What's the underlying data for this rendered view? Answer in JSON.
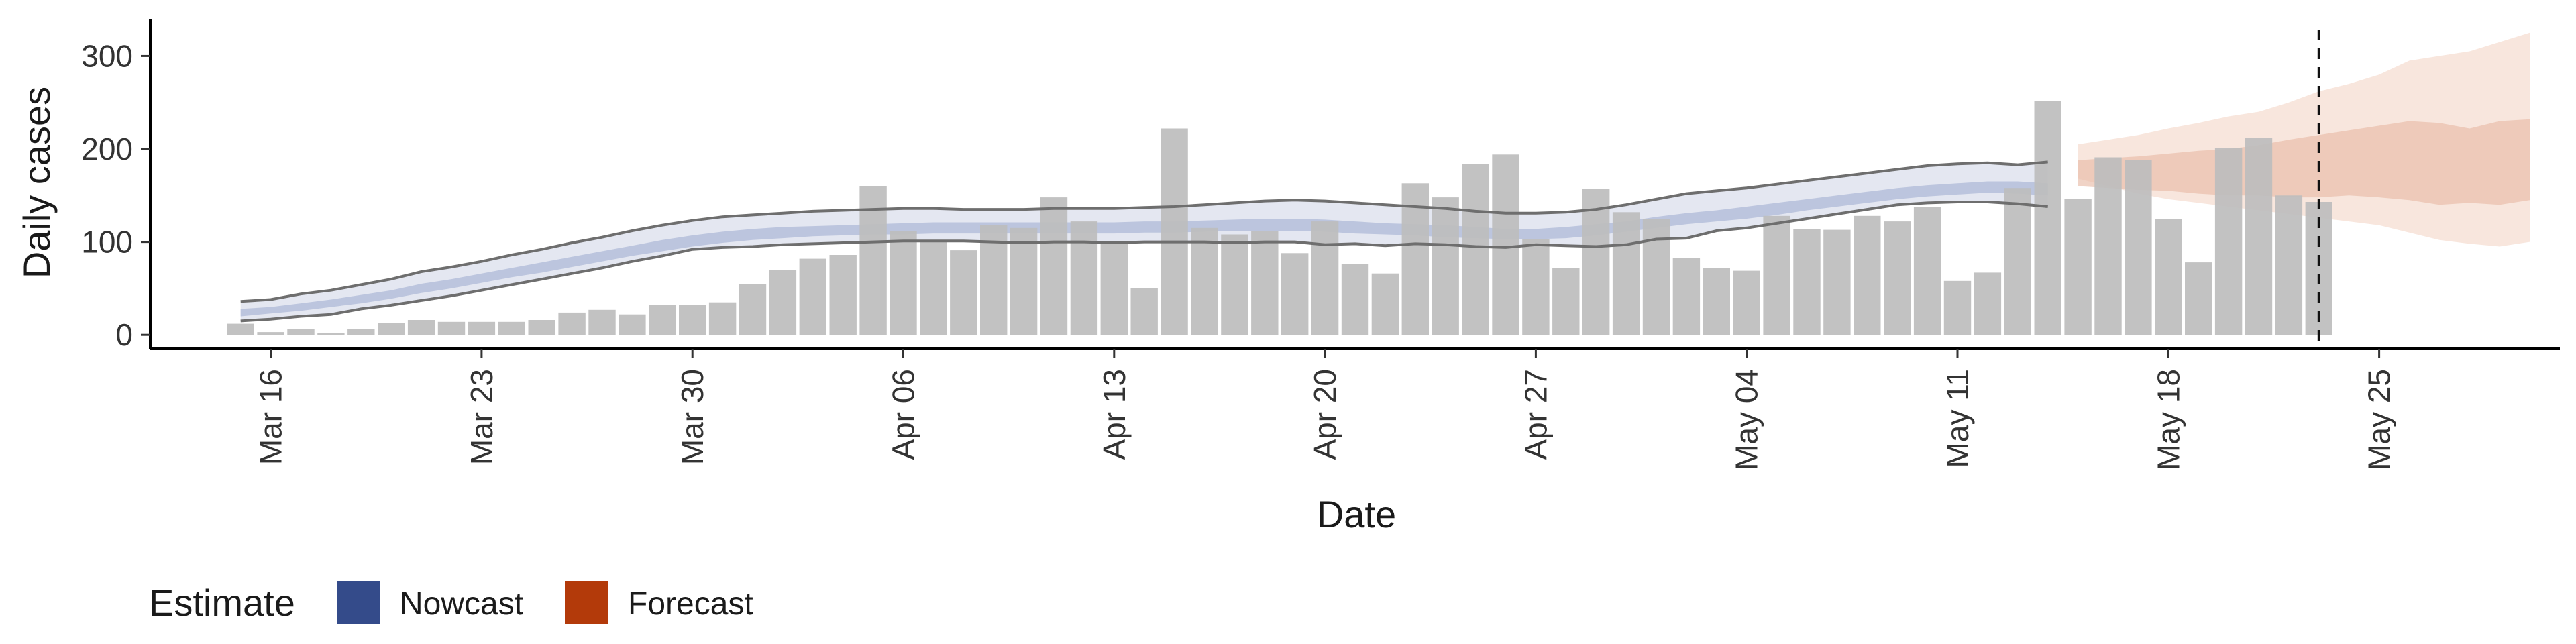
{
  "chart_data": {
    "type": "bar",
    "xlabel": "Date",
    "ylabel": "Daily cases",
    "ylim": [
      -15,
      340
    ],
    "xlim": [
      "2020-03-12",
      "2020-05-31"
    ],
    "y_ticks": [
      0,
      100,
      200,
      300
    ],
    "x_ticks": [
      {
        "date": "2020-03-16",
        "label": "Mar 16"
      },
      {
        "date": "2020-03-23",
        "label": "Mar 23"
      },
      {
        "date": "2020-03-30",
        "label": "Mar 30"
      },
      {
        "date": "2020-04-06",
        "label": "Apr 06"
      },
      {
        "date": "2020-04-13",
        "label": "Apr 13"
      },
      {
        "date": "2020-04-20",
        "label": "Apr 20"
      },
      {
        "date": "2020-04-27",
        "label": "Apr 27"
      },
      {
        "date": "2020-05-04",
        "label": "May 04"
      },
      {
        "date": "2020-05-11",
        "label": "May 11"
      },
      {
        "date": "2020-05-18",
        "label": "May 18"
      },
      {
        "date": "2020-05-25",
        "label": "May 25"
      }
    ],
    "grid": false,
    "legend": {
      "title": "Estimate",
      "placement": "bottom-left",
      "entries": [
        {
          "label": "Nowcast",
          "color": "#344b8a"
        },
        {
          "label": "Forecast",
          "color": "#b33a0a"
        }
      ]
    },
    "reference_line": {
      "date": "2020-05-23",
      "style": "dashed"
    },
    "bar_color": "#bdbdbd",
    "daily_cases": {
      "start_date": "2020-03-15",
      "values": [
        12,
        3,
        6,
        2,
        6,
        13,
        16,
        14,
        14,
        14,
        16,
        24,
        27,
        22,
        32,
        32,
        35,
        55,
        70,
        82,
        86,
        160,
        112,
        100,
        91,
        118,
        115,
        148,
        122,
        100,
        50,
        222,
        115,
        108,
        112,
        88,
        122,
        76,
        66,
        163,
        148,
        184,
        194,
        103,
        72,
        157,
        132,
        125,
        83,
        72,
        69,
        128,
        114,
        113,
        128,
        122,
        138,
        58,
        67,
        158,
        252,
        146,
        191,
        188,
        125,
        78,
        201,
        212,
        150,
        143
      ]
    },
    "nowcast": {
      "start_date": "2020-03-15",
      "outer_upper": [
        36,
        38,
        44,
        48,
        54,
        60,
        68,
        73,
        79,
        86,
        92,
        99,
        105,
        112,
        118,
        123,
        127,
        129,
        131,
        133,
        134,
        135,
        136,
        136,
        135,
        135,
        135,
        136,
        136,
        136,
        137,
        138,
        140,
        142,
        144,
        145,
        144,
        142,
        140,
        138,
        136,
        133,
        131,
        131,
        132,
        135,
        140,
        146,
        152,
        155,
        158,
        162,
        166,
        170,
        174,
        178,
        182,
        184,
        185,
        183,
        186
      ],
      "outer_lower": [
        15,
        17,
        20,
        22,
        28,
        32,
        37,
        42,
        48,
        54,
        60,
        66,
        72,
        79,
        85,
        92,
        94,
        95,
        97,
        98,
        99,
        100,
        101,
        101,
        101,
        100,
        99,
        100,
        100,
        99,
        100,
        100,
        100,
        99,
        100,
        100,
        97,
        98,
        96,
        98,
        97,
        95,
        94,
        97,
        96,
        95,
        97,
        103,
        104,
        112,
        115,
        120,
        125,
        130,
        135,
        140,
        142,
        143,
        143,
        141,
        138
      ],
      "inner_upper": [
        28,
        30,
        34,
        38,
        43,
        48,
        55,
        60,
        66,
        72,
        78,
        84,
        90,
        96,
        102,
        107,
        111,
        114,
        116,
        117,
        118,
        119,
        120,
        121,
        121,
        121,
        121,
        121,
        121,
        121,
        122,
        122,
        123,
        124,
        125,
        125,
        124,
        122,
        120,
        119,
        118,
        116,
        114,
        114,
        116,
        119,
        122,
        127,
        131,
        134,
        138,
        142,
        146,
        150,
        154,
        158,
        161,
        163,
        165,
        165,
        163
      ],
      "inner_lower": [
        20,
        23,
        26,
        30,
        34,
        39,
        45,
        50,
        56,
        62,
        67,
        73,
        79,
        85,
        90,
        95,
        99,
        102,
        104,
        106,
        107,
        108,
        108,
        109,
        109,
        109,
        109,
        109,
        109,
        109,
        110,
        110,
        111,
        112,
        112,
        112,
        111,
        109,
        108,
        107,
        105,
        104,
        103,
        103,
        104,
        107,
        111,
        115,
        119,
        122,
        125,
        129,
        134,
        138,
        142,
        146,
        149,
        151,
        153,
        152,
        150
      ]
    },
    "forecast": {
      "start_date": "2020-05-15",
      "outer_upper": [
        205,
        210,
        215,
        222,
        228,
        235,
        240,
        250,
        262,
        270,
        280,
        295,
        300,
        305,
        315,
        325
      ],
      "outer_lower": [
        168,
        160,
        152,
        146,
        142,
        138,
        134,
        130,
        126,
        122,
        118,
        110,
        102,
        98,
        95,
        100
      ],
      "inner_upper": [
        188,
        190,
        192,
        195,
        198,
        200,
        204,
        210,
        215,
        220,
        225,
        230,
        228,
        222,
        230,
        232
      ],
      "inner_lower": [
        160,
        158,
        156,
        155,
        152,
        150,
        150,
        148,
        148,
        150,
        148,
        145,
        140,
        142,
        140,
        145
      ]
    }
  }
}
